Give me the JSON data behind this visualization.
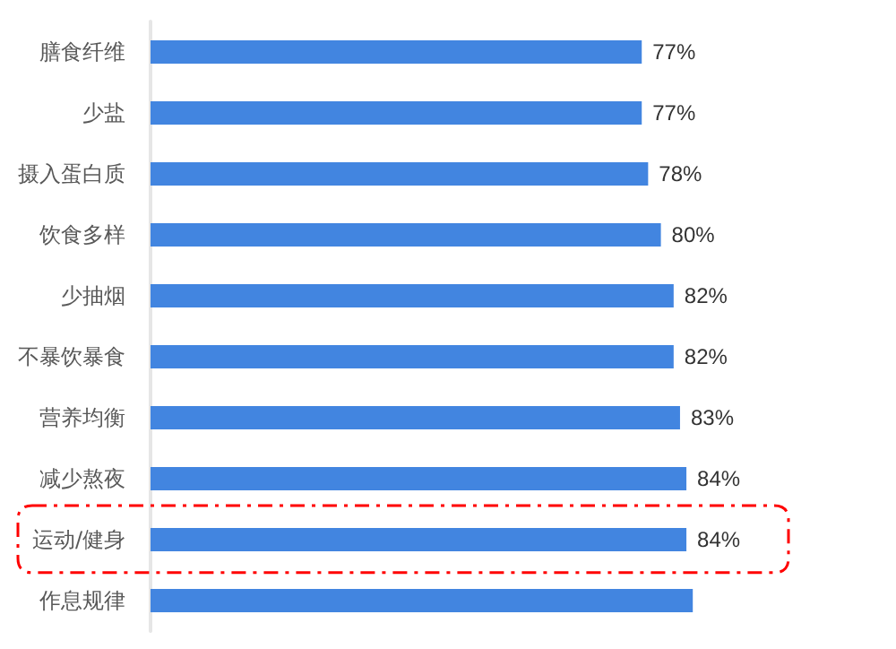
{
  "chart_data": {
    "type": "bar",
    "orientation": "horizontal",
    "categories": [
      "膳食纤维",
      "少盐",
      "摄入蛋白质",
      "饮食多样",
      "少抽烟",
      "不暴饮暴食",
      "营养均衡",
      "减少熬夜",
      "运动/健身",
      "作息规律"
    ],
    "values": [
      77,
      77,
      78,
      80,
      82,
      82,
      83,
      84,
      84,
      85
    ],
    "value_labels": [
      "77%",
      "77%",
      "78%",
      "80%",
      "82%",
      "82%",
      "83%",
      "84%",
      "84%",
      null
    ],
    "color": "#4285e0",
    "tick_labels": "y"
  }
}
